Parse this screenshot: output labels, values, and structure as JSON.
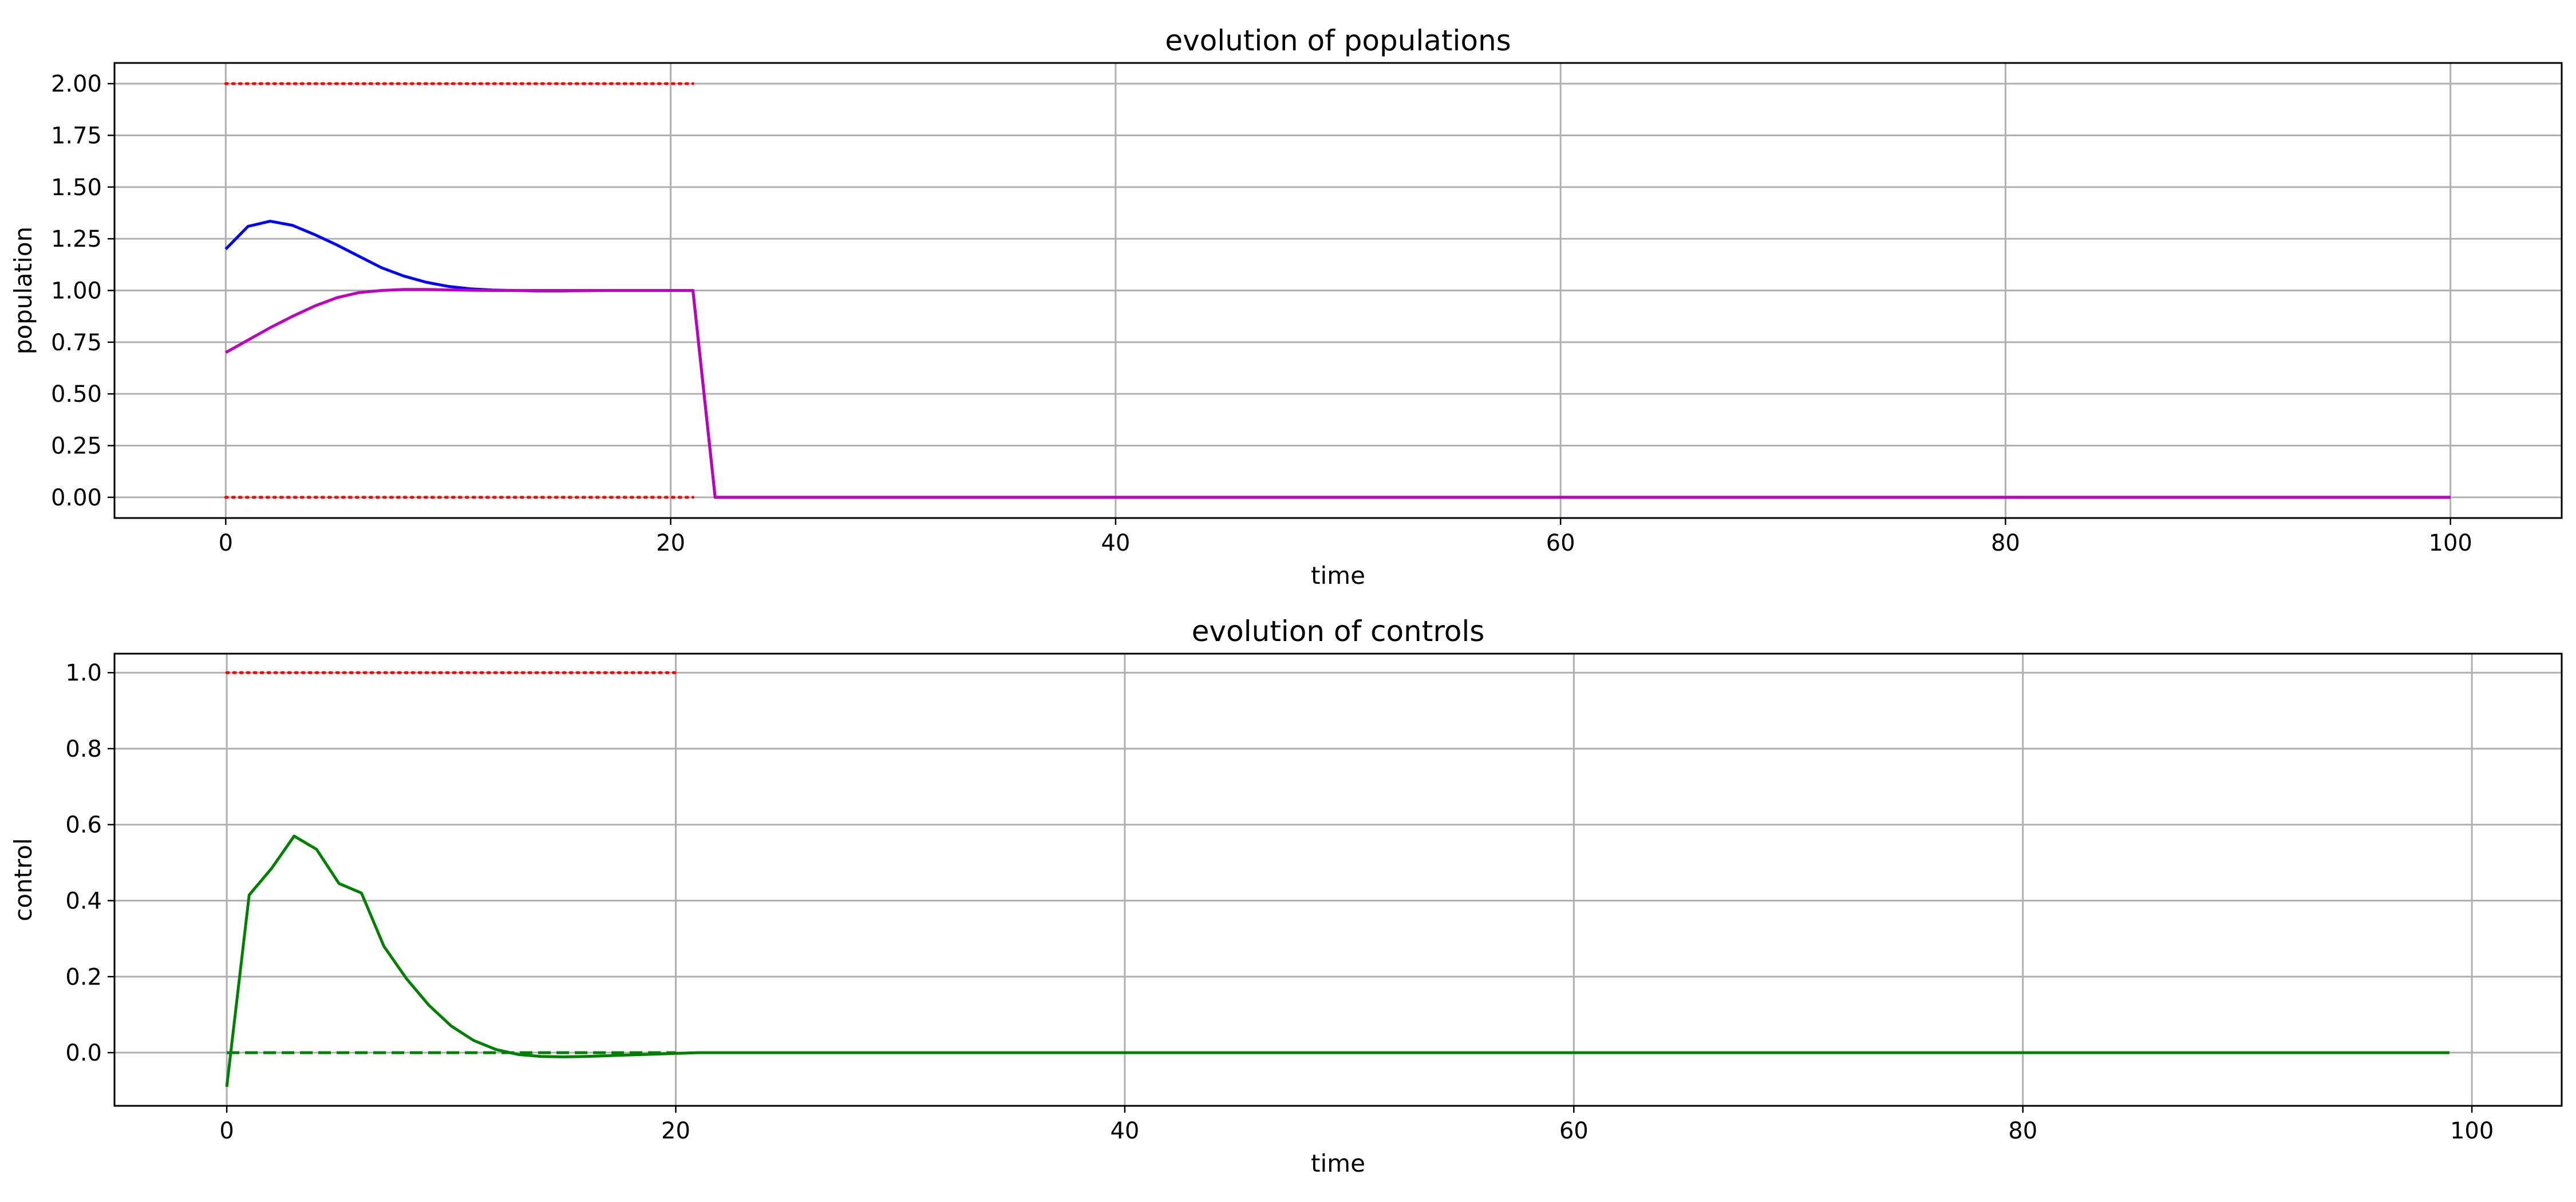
{
  "chart_data": [
    {
      "type": "line",
      "title": "evolution of populations",
      "xlabel": "time",
      "ylabel": "population",
      "xlim": [
        -5,
        105
      ],
      "ylim": [
        -0.1,
        2.1
      ],
      "xticks": [
        "0",
        "20",
        "40",
        "60",
        "80",
        "100"
      ],
      "yticks": [
        "0.00",
        "0.25",
        "0.50",
        "0.75",
        "1.00",
        "1.25",
        "1.50",
        "1.75",
        "2.00"
      ],
      "grid": true,
      "series": [
        {
          "color": "#0000ff",
          "style": "solid",
          "x": [
            0,
            1,
            2,
            3,
            4,
            5,
            6,
            7,
            8,
            9,
            10,
            11,
            12,
            13,
            14,
            15,
            16,
            17,
            18,
            19,
            20,
            21,
            22,
            23,
            30,
            40,
            50,
            60,
            70,
            80,
            90,
            100
          ],
          "y": [
            1.2,
            1.31,
            1.335,
            1.315,
            1.27,
            1.22,
            1.165,
            1.11,
            1.07,
            1.04,
            1.02,
            1.008,
            1.002,
            1.0,
            0.998,
            0.998,
            0.999,
            1.0,
            1.0,
            1.0,
            1.0,
            1.0,
            0.0,
            0.0,
            0.0,
            0.0,
            0.0,
            0.0,
            0.0,
            0.0,
            0.0,
            0.0
          ]
        },
        {
          "color": "#bf00bf",
          "style": "solid",
          "x": [
            0,
            1,
            2,
            3,
            4,
            5,
            6,
            7,
            8,
            9,
            10,
            11,
            12,
            13,
            14,
            15,
            16,
            17,
            18,
            19,
            20,
            21,
            22,
            23,
            30,
            40,
            50,
            60,
            70,
            80,
            90,
            100
          ],
          "y": [
            0.7,
            0.76,
            0.82,
            0.875,
            0.925,
            0.965,
            0.99,
            1.0,
            1.005,
            1.005,
            1.003,
            1.001,
            1.0,
            1.0,
            1.0,
            1.0,
            1.0,
            1.0,
            1.0,
            1.0,
            1.0,
            1.0,
            0.0,
            0.0,
            0.0,
            0.0,
            0.0,
            0.0,
            0.0,
            0.0,
            0.0,
            0.0
          ]
        },
        {
          "color": "#ff0000",
          "style": "dotted",
          "x": [
            0,
            21
          ],
          "y": [
            2.0,
            2.0
          ]
        },
        {
          "color": "#ff0000",
          "style": "dotted",
          "x": [
            0,
            21
          ],
          "y": [
            0.0,
            0.0
          ]
        }
      ]
    },
    {
      "type": "line",
      "title": "evolution of controls",
      "xlabel": "time",
      "ylabel": "control",
      "xlim": [
        -5,
        104
      ],
      "ylim": [
        -0.14,
        1.05
      ],
      "xticks": [
        "0",
        "20",
        "40",
        "60",
        "80",
        "100"
      ],
      "yticks": [
        "0.0",
        "0.2",
        "0.4",
        "0.6",
        "0.8",
        "1.0"
      ],
      "grid": true,
      "series": [
        {
          "color": "#008000",
          "style": "solid",
          "x": [
            0,
            1,
            2,
            3,
            4,
            5,
            6,
            7,
            8,
            9,
            10,
            11,
            12,
            13,
            14,
            15,
            16,
            17,
            18,
            19,
            20,
            21,
            30,
            40,
            50,
            60,
            70,
            80,
            90,
            99
          ],
          "y": [
            -0.09,
            0.415,
            0.485,
            0.57,
            0.535,
            0.445,
            0.42,
            0.28,
            0.195,
            0.125,
            0.07,
            0.032,
            0.008,
            -0.005,
            -0.01,
            -0.011,
            -0.01,
            -0.008,
            -0.006,
            -0.004,
            -0.002,
            0.0,
            0.0,
            0.0,
            0.0,
            0.0,
            0.0,
            0.0,
            0.0,
            0.0
          ]
        },
        {
          "color": "#008000",
          "style": "dashed",
          "x": [
            0,
            20
          ],
          "y": [
            0.0,
            0.0
          ]
        },
        {
          "color": "#ff0000",
          "style": "dotted",
          "x": [
            0,
            20
          ],
          "y": [
            1.0,
            1.0
          ]
        }
      ]
    }
  ]
}
